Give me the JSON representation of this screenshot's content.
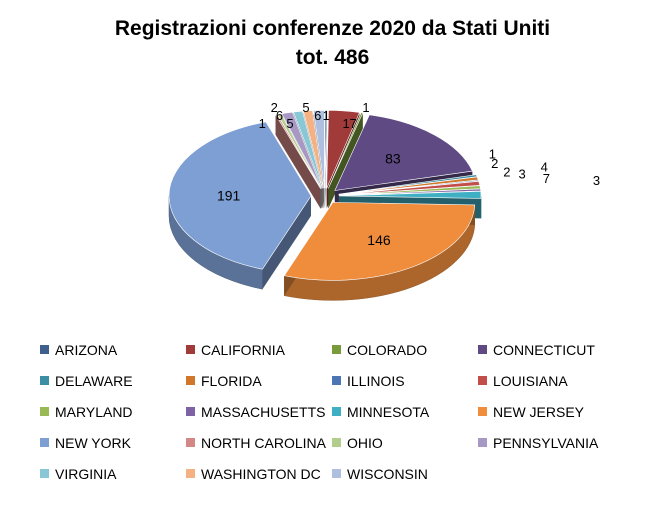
{
  "chart_data": {
    "type": "pie",
    "title_line1": "Registrazioni conferenze 2020 da Stati Uniti",
    "title_line2": "tot. 486",
    "legend_position": "bottom",
    "slices": [
      {
        "label": "ARIZONA",
        "value": 1,
        "color": "#3f5f8c"
      },
      {
        "label": "CALIFORNIA",
        "value": 17,
        "color": "#a13b39"
      },
      {
        "label": "COLORADO",
        "value": 1,
        "color": "#7a9b3c"
      },
      {
        "label": "CONNECTICUT",
        "value": 83,
        "color": "#5f4a84"
      },
      {
        "label": "DELAWARE",
        "value": 2,
        "color": "#3b8ea3"
      },
      {
        "label": "FLORIDA",
        "value": 3,
        "color": "#d1772c"
      },
      {
        "label": "ILLINOIS",
        "value": 1,
        "color": "#4d74b3"
      },
      {
        "label": "LOUISIANA",
        "value": 4,
        "color": "#c24e4b"
      },
      {
        "label": "MARYLAND",
        "value": 3,
        "color": "#98b954"
      },
      {
        "label": "MASSACHUSETTS",
        "value": 2,
        "color": "#7e62a6"
      },
      {
        "label": "MINNESOTA",
        "value": 7,
        "color": "#3fafc4"
      },
      {
        "label": "NEW JERSEY",
        "value": 146,
        "color": "#ef8d3c"
      },
      {
        "label": "NEW YORK",
        "value": 191,
        "color": "#7e9fd3"
      },
      {
        "label": "NORTH CAROLINA",
        "value": 1,
        "color": "#d48885"
      },
      {
        "label": "OHIO",
        "value": 2,
        "color": "#b3cd8d"
      },
      {
        "label": "PENNSYLVANIA",
        "value": 6,
        "color": "#a898c4"
      },
      {
        "label": "VIRGINIA",
        "value": 5,
        "color": "#88c7d6"
      },
      {
        "label": "WASHINGTON DC",
        "value": 5,
        "color": "#f4b183"
      },
      {
        "label": "WISCONSIN",
        "value": 6,
        "color": "#aebfe0"
      }
    ]
  }
}
